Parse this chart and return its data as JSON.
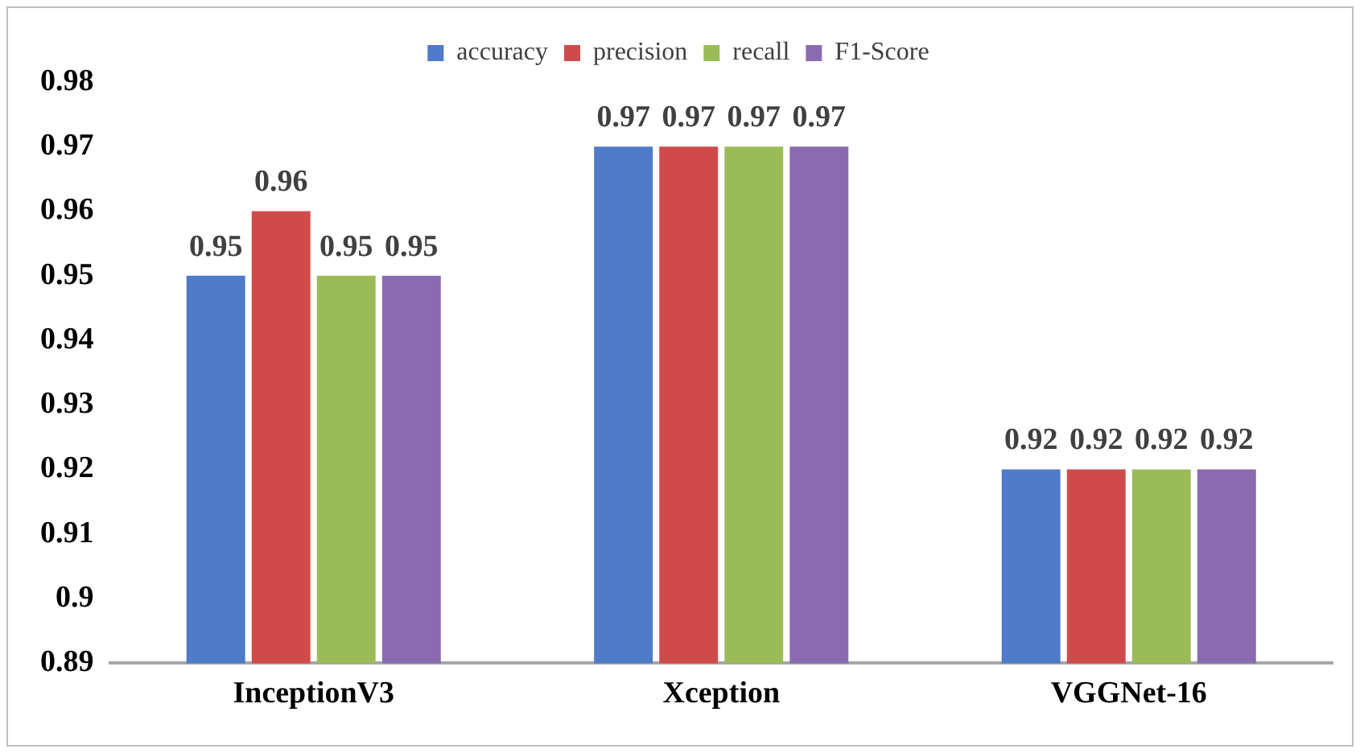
{
  "chart_data": {
    "type": "bar",
    "categories": [
      "InceptionV3",
      "Xception",
      "VGGNet-16"
    ],
    "series": [
      {
        "name": "accuracy",
        "color": "#4f7bc8",
        "values": [
          0.95,
          0.97,
          0.92
        ]
      },
      {
        "name": "precision",
        "color": "#cf4b4b",
        "values": [
          0.96,
          0.97,
          0.92
        ]
      },
      {
        "name": "recall",
        "color": "#9bbb59",
        "values": [
          0.95,
          0.97,
          0.92
        ]
      },
      {
        "name": "F1-Score",
        "color": "#8a6bb0",
        "values": [
          0.95,
          0.97,
          0.92
        ]
      }
    ],
    "ylim": [
      0.89,
      0.98
    ],
    "yticks": [
      0.89,
      0.9,
      0.91,
      0.92,
      0.93,
      0.94,
      0.95,
      0.96,
      0.97,
      0.98
    ],
    "grid": false,
    "legend": "top",
    "data_labels": true
  }
}
